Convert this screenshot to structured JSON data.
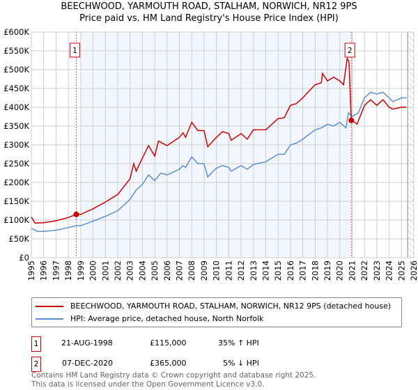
{
  "chart_data": {
    "type": "line",
    "title": "BEECHWOOD, YARMOUTH ROAD, STALHAM, NORWICH, NR12 9PS",
    "subtitle": "Price paid vs. HM Land Registry's House Price Index (HPI)",
    "xlim": [
      1995,
      2026
    ],
    "ylim": [
      0,
      600000
    ],
    "x_ticks": [
      "1995",
      "1996",
      "1997",
      "1998",
      "1999",
      "2000",
      "2001",
      "2002",
      "2003",
      "2004",
      "2005",
      "2006",
      "2007",
      "2008",
      "2009",
      "2010",
      "2011",
      "2012",
      "2013",
      "2014",
      "2015",
      "2016",
      "2017",
      "2018",
      "2019",
      "2020",
      "2021",
      "2022",
      "2023",
      "2024",
      "2025",
      "2026"
    ],
    "y_ticks": [
      {
        "v": 0,
        "label": "£0"
      },
      {
        "v": 50000,
        "label": "£50K"
      },
      {
        "v": 100000,
        "label": "£100K"
      },
      {
        "v": 150000,
        "label": "£150K"
      },
      {
        "v": 200000,
        "label": "£200K"
      },
      {
        "v": 250000,
        "label": "£250K"
      },
      {
        "v": 300000,
        "label": "£300K"
      },
      {
        "v": 350000,
        "label": "£350K"
      },
      {
        "v": 400000,
        "label": "£400K"
      },
      {
        "v": 450000,
        "label": "£450K"
      },
      {
        "v": 500000,
        "label": "£500K"
      },
      {
        "v": 550000,
        "label": "£550K"
      },
      {
        "v": 600000,
        "label": "£600K"
      }
    ],
    "grid": true,
    "shaded_range": [
      1999,
      2021
    ],
    "hatched_from": 2025.5,
    "series": [
      {
        "name": "BEECHWOOD, YARMOUTH ROAD, STALHAM, NORWICH, NR12 9PS (detached house)",
        "color": "#cc0000",
        "x": [
          1995,
          1995.3,
          1996,
          1997,
          1998,
          1998.64,
          1999,
          2000,
          2001,
          2002,
          2003,
          2003.3,
          2003.5,
          2004,
          2004.5,
          2005,
          2005.3,
          2006,
          2007,
          2007.3,
          2007.5,
          2008,
          2008.5,
          2009,
          2009.3,
          2010,
          2010.5,
          2011,
          2011.2,
          2012,
          2012.5,
          2013,
          2014,
          2015,
          2015.5,
          2016,
          2016.5,
          2017,
          2018,
          2018.5,
          2018.6,
          2019,
          2019.5,
          2020,
          2020.3,
          2020.6,
          2020.75,
          2020.93,
          2021,
          2021.4,
          2022,
          2022.5,
          2023,
          2023.5,
          2024,
          2024.3,
          2025,
          2025.4
        ],
        "y": [
          108000,
          92000,
          93000,
          98000,
          107000,
          115000,
          115000,
          130000,
          148000,
          168000,
          210000,
          250000,
          230000,
          265000,
          298000,
          270000,
          310000,
          298000,
          320000,
          332000,
          320000,
          360000,
          338000,
          338000,
          295000,
          320000,
          335000,
          330000,
          312000,
          330000,
          315000,
          340000,
          340000,
          370000,
          372000,
          405000,
          410000,
          425000,
          460000,
          465000,
          490000,
          470000,
          480000,
          470000,
          460000,
          530000,
          520000,
          365000,
          365000,
          355000,
          405000,
          420000,
          405000,
          420000,
          400000,
          395000,
          400000,
          400000
        ]
      },
      {
        "name": "HPI: Average price, detached house, North Norfolk",
        "color": "#5b8fd0",
        "x": [
          1995,
          1995.5,
          1996,
          1997,
          1998,
          1998.6,
          1999,
          2000,
          2001,
          2002,
          2003,
          2003.5,
          2004,
          2004.5,
          2005,
          2005.5,
          2006,
          2007,
          2007.3,
          2007.5,
          2008,
          2008.5,
          2009,
          2009.3,
          2010,
          2010.5,
          2011,
          2011.2,
          2012,
          2012.5,
          2013,
          2014,
          2015,
          2015.5,
          2016,
          2016.5,
          2017,
          2018,
          2018.5,
          2019,
          2019.5,
          2020,
          2020.5,
          2020.7,
          2021,
          2021.5,
          2022,
          2022.5,
          2023,
          2023.5,
          2024,
          2024.3,
          2025,
          2025.4
        ],
        "y": [
          78000,
          70000,
          70000,
          73000,
          80000,
          85000,
          85000,
          97000,
          110000,
          125000,
          155000,
          180000,
          195000,
          220000,
          205000,
          225000,
          220000,
          235000,
          245000,
          240000,
          268000,
          250000,
          250000,
          215000,
          238000,
          245000,
          240000,
          230000,
          245000,
          235000,
          248000,
          255000,
          275000,
          275000,
          300000,
          305000,
          315000,
          340000,
          345000,
          355000,
          350000,
          360000,
          345000,
          385000,
          375000,
          385000,
          425000,
          440000,
          435000,
          440000,
          425000,
          415000,
          425000,
          425000
        ]
      }
    ],
    "annotations": [
      {
        "label": "1",
        "x": 1998.64,
        "y": 115000
      },
      {
        "label": "2",
        "x": 2020.93,
        "y": 365000
      }
    ]
  },
  "legend": {
    "items": [
      "BEECHWOOD, YARMOUTH ROAD, STALHAM, NORWICH, NR12 9PS (detached house)",
      "HPI: Average price, detached house, North Norfolk"
    ]
  },
  "sales": [
    {
      "num": "1",
      "date": "21-AUG-1998",
      "price": "£115,000",
      "hpi": "35% ↑ HPI"
    },
    {
      "num": "2",
      "date": "07-DEC-2020",
      "price": "£365,000",
      "hpi": "5% ↓ HPI"
    }
  ],
  "footer": {
    "line1": "Contains HM Land Registry data © Crown copyright and database right 2025.",
    "line2": "This data is licensed under the Open Government Licence v3.0."
  }
}
